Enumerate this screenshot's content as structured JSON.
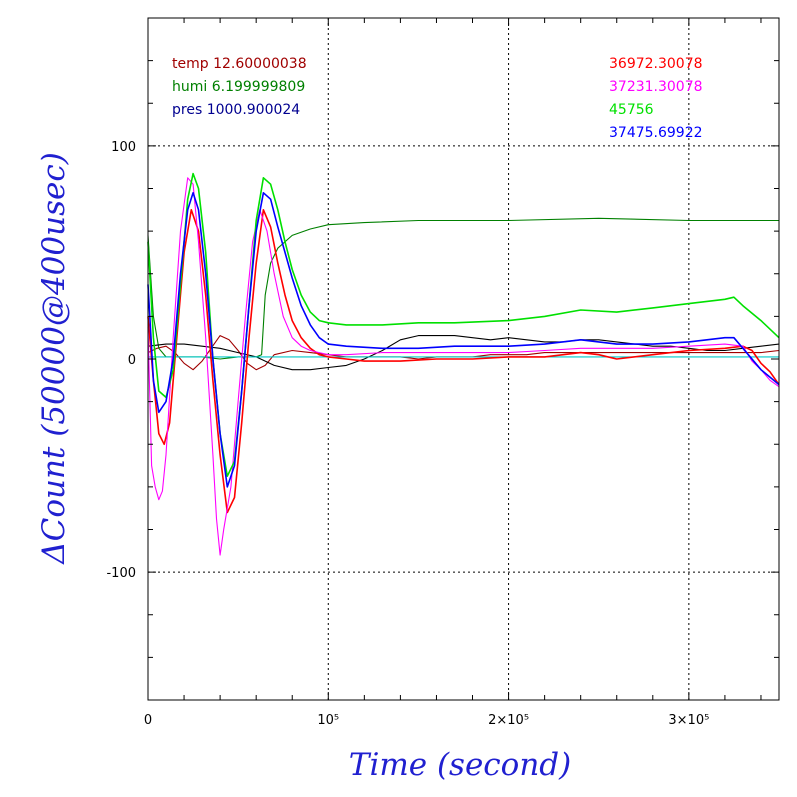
{
  "chart_data": {
    "type": "line",
    "xlabel": "Time (second)",
    "ylabel": "ΔCount (50000@400usec)",
    "xlim": [
      0,
      350000
    ],
    "ylim": [
      -160,
      160
    ],
    "grid": true,
    "x_ticks": [
      {
        "value": 0,
        "label": "0"
      },
      {
        "value": 100000,
        "label": "10⁵"
      },
      {
        "value": 200000,
        "label": "2×10⁵"
      },
      {
        "value": 300000,
        "label": "3×10⁵"
      }
    ],
    "y_ticks": [
      {
        "value": 100,
        "label": "100"
      },
      {
        "value": 0,
        "label": "0"
      },
      {
        "value": -100,
        "label": "-100"
      }
    ],
    "legend_left": [
      {
        "text": "temp 12.60000038",
        "color": "#a00000"
      },
      {
        "text": "humi 6.199999809",
        "color": "#008000"
      },
      {
        "text": "pres 1000.900024",
        "color": "#000090"
      }
    ],
    "legend_right": [
      {
        "text": "36972.30078",
        "color": "#ff0000"
      },
      {
        "text": "37231.30078",
        "color": "#ff00ff"
      },
      {
        "text": "45756",
        "color": "#00e000"
      },
      {
        "text": "37475.69922",
        "color": "#0000ff"
      }
    ],
    "series": [
      {
        "color": "#a00000",
        "x": [
          0,
          5000,
          10000,
          15000,
          20000,
          25000,
          30000,
          35000,
          40000,
          45000,
          50000,
          55000,
          60000,
          65000,
          70000,
          80000,
          90000,
          100000,
          110000,
          120000,
          130000,
          140000,
          150000,
          160000,
          170000,
          180000,
          190000,
          200000,
          210000,
          220000,
          230000,
          240000,
          250000,
          260000,
          270000,
          280000,
          290000,
          300000,
          310000,
          320000,
          330000,
          340000,
          350000
        ],
        "y": [
          3,
          5,
          6,
          3,
          -2,
          -5,
          -1,
          5,
          11,
          9,
          4,
          -2,
          -5,
          -3,
          2,
          4,
          3,
          2,
          1,
          1,
          1,
          1,
          0,
          1,
          1,
          1,
          2,
          2,
          2,
          3,
          3,
          3,
          3,
          3,
          3,
          3,
          3,
          3,
          3,
          3,
          3,
          3,
          4
        ]
      },
      {
        "color": "#008000",
        "x": [
          0,
          3000,
          6000,
          10000,
          20000,
          30000,
          40000,
          50000,
          55000,
          60000,
          63000,
          65000,
          68000,
          72000,
          80000,
          90000,
          100000,
          120000,
          150000,
          200000,
          250000,
          300000,
          330000,
          350000
        ],
        "y": [
          58,
          20,
          5,
          1,
          1,
          1,
          0,
          1,
          1,
          1,
          2,
          30,
          45,
          52,
          58,
          61,
          63,
          64,
          65,
          65,
          66,
          65,
          65,
          65
        ]
      },
      {
        "color": "#000000",
        "x": [
          0,
          10000,
          20000,
          30000,
          40000,
          50000,
          60000,
          70000,
          80000,
          90000,
          100000,
          110000,
          120000,
          130000,
          140000,
          150000,
          160000,
          170000,
          180000,
          190000,
          200000,
          210000,
          220000,
          230000,
          240000,
          250000,
          260000,
          270000,
          280000,
          290000,
          300000,
          310000,
          320000,
          330000,
          340000,
          350000
        ],
        "y": [
          6,
          7,
          7,
          6,
          5,
          3,
          1,
          -3,
          -5,
          -5,
          -4,
          -3,
          0,
          4,
          9,
          11,
          11,
          11,
          10,
          9,
          10,
          9,
          8,
          8,
          9,
          9,
          8,
          7,
          6,
          6,
          5,
          4,
          4,
          5,
          6,
          7
        ]
      },
      {
        "color": "#00c8c8",
        "x": [
          0,
          50000,
          100000,
          150000,
          200000,
          250000,
          300000,
          350000
        ],
        "y": [
          1,
          1,
          1,
          1,
          1,
          1,
          1,
          1
        ]
      },
      {
        "color": "#ff0000",
        "x": [
          0,
          3000,
          6000,
          9000,
          12000,
          16000,
          20000,
          24000,
          28000,
          32000,
          36000,
          40000,
          44000,
          48000,
          52000,
          56000,
          60000,
          64000,
          68000,
          72000,
          76000,
          80000,
          85000,
          90000,
          95000,
          100000,
          110000,
          120000,
          140000,
          160000,
          180000,
          200000,
          220000,
          240000,
          250000,
          260000,
          280000,
          300000,
          320000,
          330000,
          335000,
          340000,
          345000,
          350000
        ],
        "y": [
          20,
          -10,
          -35,
          -40,
          -30,
          10,
          50,
          70,
          60,
          30,
          -10,
          -45,
          -72,
          -65,
          -30,
          10,
          45,
          70,
          62,
          45,
          30,
          18,
          10,
          5,
          2,
          1,
          0,
          -1,
          -1,
          0,
          0,
          1,
          1,
          3,
          2,
          0,
          2,
          4,
          5,
          6,
          4,
          -2,
          -6,
          -12
        ]
      },
      {
        "color": "#ff00ff",
        "x": [
          0,
          2000,
          4000,
          6000,
          8000,
          10000,
          14000,
          18000,
          22000,
          25000,
          28000,
          32000,
          36000,
          38000,
          40000,
          42000,
          46000,
          50000,
          54000,
          58000,
          62000,
          66000,
          70000,
          75000,
          80000,
          85000,
          90000,
          95000,
          100000,
          110000,
          130000,
          150000,
          180000,
          200000,
          220000,
          240000,
          260000,
          280000,
          300000,
          320000,
          330000,
          335000,
          340000,
          345000,
          350000
        ],
        "y": [
          15,
          -50,
          -60,
          -66,
          -62,
          -45,
          10,
          60,
          85,
          82,
          55,
          10,
          -45,
          -75,
          -92,
          -80,
          -60,
          -20,
          20,
          55,
          70,
          60,
          40,
          20,
          10,
          6,
          4,
          3,
          2,
          2,
          3,
          3,
          3,
          3,
          4,
          5,
          5,
          5,
          6,
          7,
          6,
          -1,
          -5,
          -10,
          -13
        ]
      },
      {
        "color": "#00e000",
        "x": [
          0,
          3000,
          6000,
          10000,
          14000,
          18000,
          22000,
          25000,
          28000,
          32000,
          36000,
          40000,
          44000,
          48000,
          52000,
          56000,
          60000,
          64000,
          68000,
          72000,
          76000,
          80000,
          85000,
          90000,
          95000,
          100000,
          110000,
          130000,
          150000,
          170000,
          200000,
          220000,
          240000,
          260000,
          280000,
          300000,
          320000,
          325000,
          330000,
          340000,
          350000
        ],
        "y": [
          55,
          10,
          -15,
          -18,
          -5,
          35,
          75,
          87,
          80,
          50,
          0,
          -35,
          -55,
          -48,
          -15,
          25,
          65,
          85,
          82,
          70,
          55,
          42,
          30,
          22,
          18,
          17,
          16,
          16,
          17,
          17,
          18,
          20,
          23,
          22,
          24,
          26,
          28,
          29,
          25,
          18,
          10
        ]
      },
      {
        "color": "#0000ff",
        "x": [
          0,
          3000,
          6000,
          10000,
          14000,
          18000,
          22000,
          25000,
          28000,
          32000,
          36000,
          40000,
          44000,
          48000,
          52000,
          56000,
          60000,
          64000,
          68000,
          72000,
          76000,
          80000,
          85000,
          90000,
          95000,
          100000,
          110000,
          130000,
          150000,
          170000,
          200000,
          220000,
          240000,
          260000,
          280000,
          300000,
          320000,
          325000,
          330000,
          340000,
          350000
        ],
        "y": [
          35,
          -10,
          -25,
          -20,
          0,
          40,
          70,
          78,
          70,
          40,
          0,
          -35,
          -60,
          -50,
          -15,
          25,
          60,
          78,
          75,
          62,
          50,
          38,
          25,
          16,
          10,
          7,
          6,
          5,
          5,
          6,
          6,
          7,
          9,
          7,
          7,
          8,
          10,
          10,
          5,
          -5,
          -12
        ]
      }
    ]
  }
}
